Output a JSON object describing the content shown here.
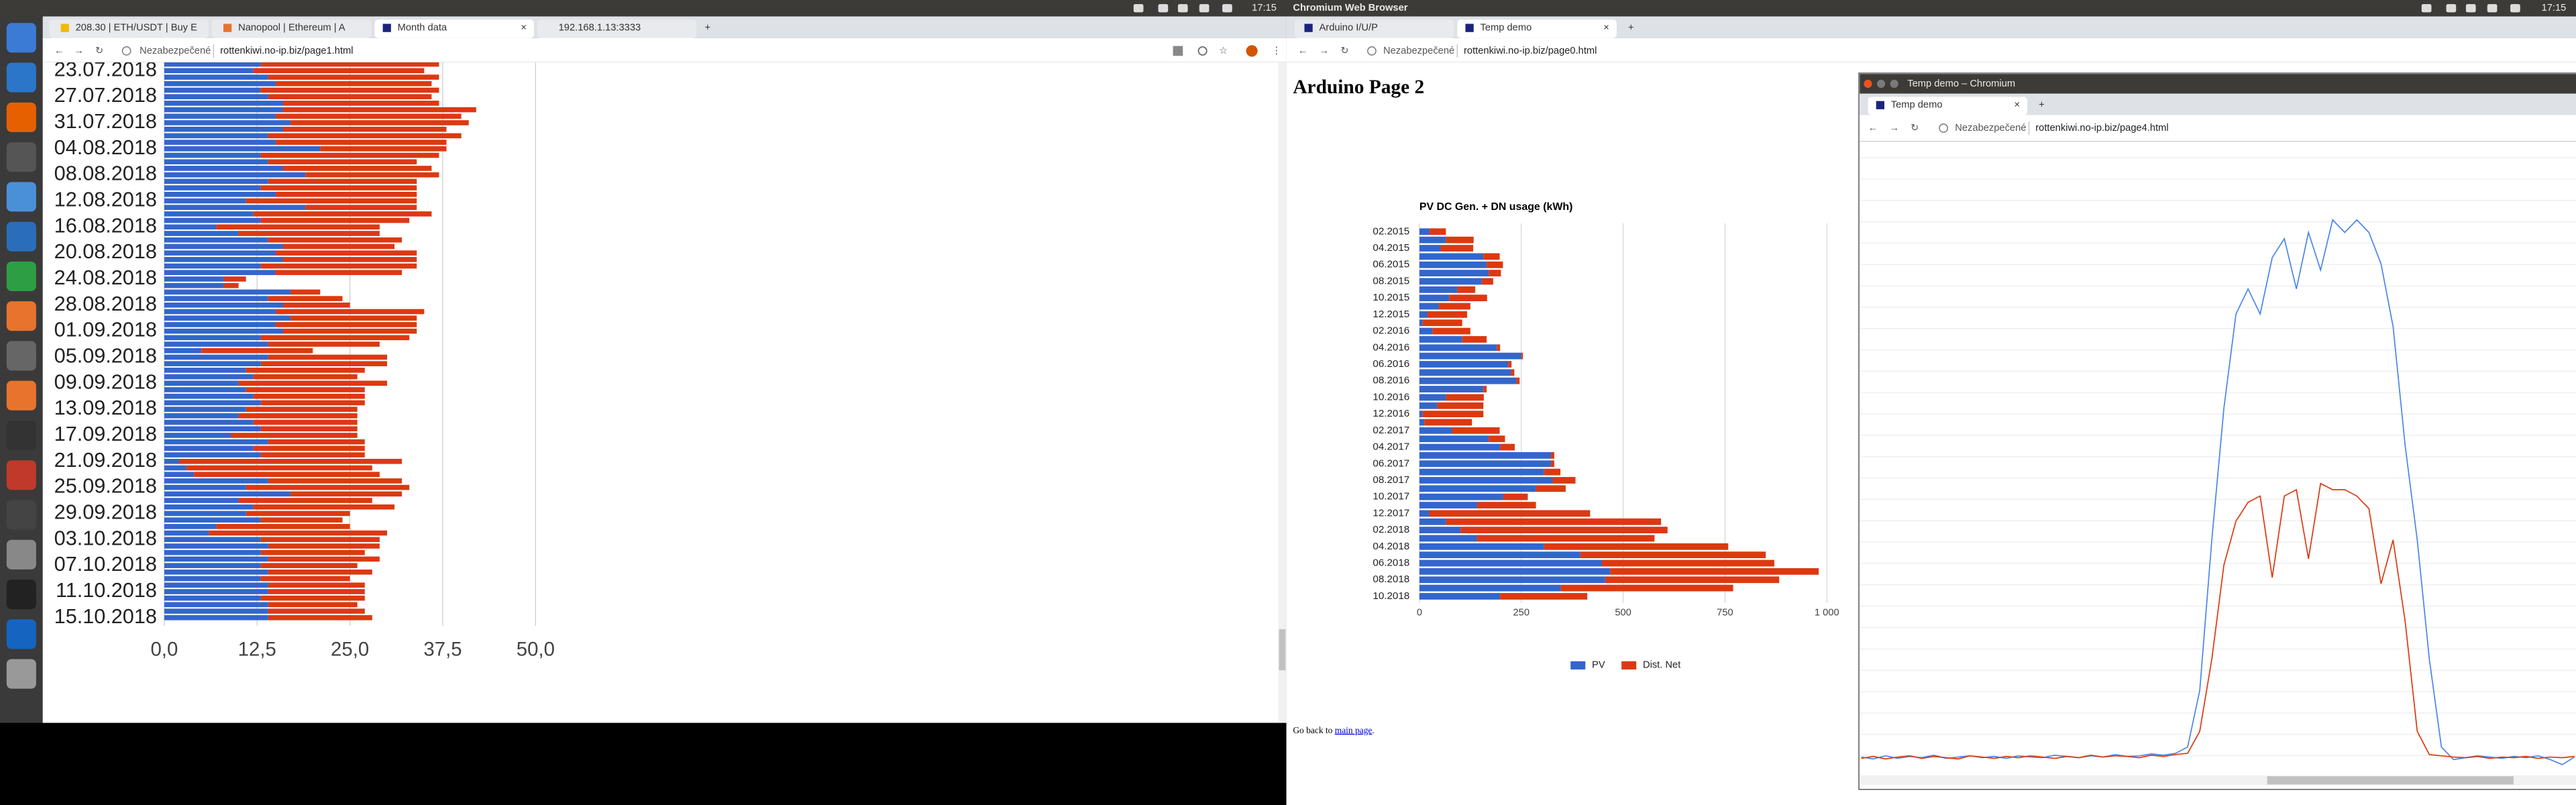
{
  "top_panel": {
    "clock_left": "17:15",
    "app": "Chromium Web Browser",
    "clock_right": "17:15"
  },
  "left_browser": {
    "tabs": [
      "208.30 | ETH/USDT | Buy E",
      "Nanopool | Ethereum | A",
      "Month data",
      "192.168.1.13:3333"
    ],
    "security": "Nezabezpečené",
    "url": "rottenkiwi.no-ip.biz/page1.html"
  },
  "right_browser": {
    "tabs": [
      "Arduino I/U/P",
      "Temp demo"
    ],
    "security": "Nezabezpečené",
    "url": "rottenkiwi.no-ip.biz/page0.html",
    "heading": "Arduino Page 2",
    "footer_text": "Go back to",
    "footer_link": "main page",
    "footer_end": "."
  },
  "popup": {
    "title": "Temp demo – Chromium",
    "tab": "Temp demo",
    "security": "Nezabezpečené",
    "url": "rottenkiwi.no-ip.biz/page4.html"
  },
  "chart_data": [
    {
      "type": "bar",
      "horizontal": true,
      "stacked": true,
      "grid": true,
      "categories": [
        null,
        "23.07.2018",
        null,
        null,
        null,
        "27.07.2018",
        null,
        null,
        null,
        "31.07.2018",
        null,
        null,
        null,
        "04.08.2018",
        null,
        null,
        null,
        "08.08.2018",
        null,
        null,
        null,
        "12.08.2018",
        null,
        null,
        null,
        "16.08.2018",
        null,
        null,
        null,
        "20.08.2018",
        null,
        null,
        null,
        "24.08.2018",
        null,
        null,
        null,
        "28.08.2018",
        null,
        null,
        null,
        "01.09.2018",
        null,
        null,
        null,
        "05.09.2018",
        null,
        null,
        null,
        "09.09.2018",
        null,
        null,
        null,
        "13.09.2018",
        null,
        null,
        null,
        "17.09.2018",
        null,
        null,
        null,
        "21.09.2018",
        null,
        null,
        null,
        "25.09.2018",
        null,
        null,
        null,
        "29.09.2018",
        null,
        null,
        null,
        "03.10.2018",
        null,
        null,
        null,
        "07.10.2018",
        null,
        null,
        null,
        "11.10.2018",
        null,
        null,
        null,
        "15.10.2018"
      ],
      "series": [
        {
          "color": "#3366cc",
          "values": [
            13,
            12,
            14,
            15,
            13,
            14,
            16,
            16,
            15,
            17,
            16,
            14,
            15,
            21,
            13,
            14,
            16,
            19,
            14,
            13,
            15,
            11,
            19,
            12,
            13,
            7,
            10,
            14,
            16,
            15,
            16,
            13,
            15,
            8,
            8,
            17,
            14,
            16,
            15,
            17,
            15,
            16,
            13,
            14,
            5,
            14,
            13,
            11,
            12,
            10,
            11,
            12,
            13,
            11,
            10,
            12,
            13,
            9,
            14,
            12,
            13,
            2,
            3,
            4,
            14,
            11,
            17,
            10,
            12,
            11,
            13,
            7,
            6,
            13,
            14,
            13,
            14,
            13,
            14,
            13,
            14,
            14,
            13,
            14,
            14,
            14
          ]
        },
        {
          "color": "#dc3912",
          "values": [
            24,
            23,
            23,
            21,
            24,
            22,
            21,
            26,
            25,
            24,
            22,
            26,
            23,
            17,
            24,
            20,
            20,
            18,
            20,
            21,
            19,
            23,
            15,
            24,
            20,
            22,
            19,
            18,
            15,
            19,
            18,
            21,
            17,
            3,
            2,
            4,
            10,
            9,
            20,
            17,
            19,
            18,
            20,
            15,
            15,
            16,
            17,
            16,
            14,
            20,
            16,
            15,
            14,
            15,
            16,
            14,
            13,
            17,
            13,
            15,
            14,
            30,
            25,
            25,
            18,
            22,
            15,
            18,
            19,
            14,
            11,
            18,
            24,
            16,
            15,
            14,
            15,
            13,
            14,
            12,
            13,
            13,
            14,
            12,
            13,
            14
          ]
        }
      ],
      "xlim": [
        0,
        50
      ],
      "xticks": [
        {
          "value": 0,
          "label": "0,0"
        },
        {
          "value": 12.5,
          "label": "12,5"
        },
        {
          "value": 25,
          "label": "25,0"
        },
        {
          "value": 37.5,
          "label": "37,5"
        },
        {
          "value": 50,
          "label": "50,0"
        }
      ]
    },
    {
      "type": "bar",
      "horizontal": true,
      "stacked": true,
      "grid": true,
      "legend": "bottom",
      "title": "PV DC Gen. + DN usage (kWh)",
      "categories": [
        "02.2015",
        null,
        "04.2015",
        null,
        "06.2015",
        null,
        "08.2015",
        null,
        "10.2015",
        null,
        "12.2015",
        null,
        "02.2016",
        null,
        "04.2016",
        null,
        "06.2016",
        null,
        "08.2016",
        null,
        "10.2016",
        null,
        "12.2016",
        null,
        "02.2017",
        null,
        "04.2017",
        null,
        "06.2017",
        null,
        "08.2017",
        null,
        "10.2017",
        null,
        "12.2017",
        null,
        "02.2018",
        null,
        "04.2018",
        null,
        "06.2018",
        null,
        "08.2018",
        null,
        "10.2018"
      ],
      "series": [
        {
          "name": "PV",
          "color": "#3366cc",
          "values": [
            25,
            65,
            52,
            157,
            165,
            170,
            153,
            93,
            73,
            48,
            20,
            8,
            32,
            105,
            190,
            250,
            218,
            225,
            238,
            157,
            65,
            44,
            8,
            12,
            80,
            170,
            198,
            323,
            323,
            306,
            327,
            286,
            206,
            141,
            24,
            65,
            101,
            141,
            306,
            395,
            448,
            468,
            456,
            347,
            198
          ]
        },
        {
          "name": "Dist. Net",
          "color": "#dc3912",
          "values": [
            40,
            68,
            80,
            40,
            40,
            30,
            28,
            44,
            93,
            77,
            97,
            97,
            93,
            60,
            8,
            4,
            8,
            8,
            8,
            8,
            93,
            113,
            149,
            117,
            117,
            40,
            36,
            8,
            8,
            40,
            56,
            73,
            60,
            145,
            395,
            528,
            508,
            436,
            452,
            455,
            423,
            512,
            427,
            423,
            214
          ]
        }
      ],
      "xlim": [
        0,
        1000
      ],
      "xticks": [
        0,
        250,
        500,
        750,
        {
          "value": 1000,
          "label": "1 000"
        }
      ]
    },
    {
      "type": "line",
      "grid": true,
      "ylim": [
        0,
        100
      ],
      "series": [
        {
          "color": "#4a86e8",
          "values": [
            2.4,
            2.1,
            2.6,
            2.2,
            2.5,
            2.3,
            2.7,
            2.2,
            2.4,
            2.6,
            2.3,
            2.5,
            2.2,
            2.6,
            2.4,
            2.3,
            2.7,
            2.5,
            2.3,
            2.6,
            2.4,
            2.8,
            2.5,
            2.6,
            2.9,
            2.7,
            3.0,
            4,
            13,
            37,
            58,
            73,
            77,
            73,
            82,
            85,
            77,
            86,
            80,
            88,
            86,
            88,
            86,
            81,
            71,
            52,
            37,
            18,
            4,
            2,
            2.3,
            2.6,
            2.4,
            2.2,
            2.5,
            2.3,
            2.6,
            2.0,
            1.2,
            2.4
          ]
        },
        {
          "color": "#dc3912",
          "values": [
            2.2,
            2.5,
            2.1,
            2.4,
            2.6,
            2.2,
            2.5,
            2.3,
            2.1,
            2.6,
            2.4,
            2.2,
            2.5,
            2.3,
            2.6,
            2.4,
            2.2,
            2.5,
            2.3,
            2.7,
            2.4,
            2.6,
            2.5,
            2.3,
            2.7,
            2.5,
            2.8,
            3.0,
            6.5,
            18,
            33,
            40,
            43,
            44,
            31,
            44,
            45,
            34,
            46,
            45,
            45,
            44,
            42,
            30,
            37,
            24,
            6.5,
            2.8,
            2.6,
            2.4,
            2.3,
            2.5,
            2.2,
            2.4,
            2.3,
            2.5,
            2.2,
            2.4,
            2.3,
            2.5
          ]
        }
      ]
    }
  ]
}
